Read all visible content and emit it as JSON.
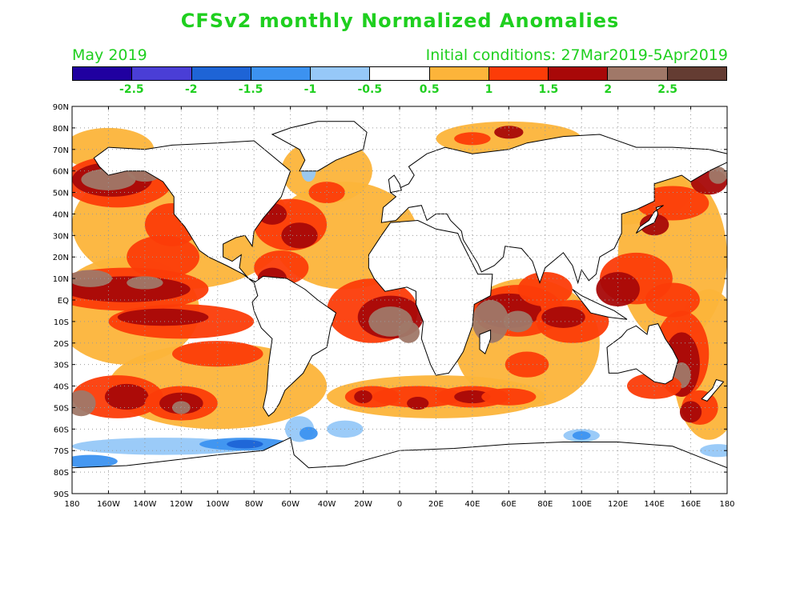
{
  "title": "CFSv2 monthly Normalized Anomalies",
  "valid_month": "May 2019",
  "initial_conditions": "Initial conditions: 27Mar2019-5Apr2019",
  "colorbar": {
    "colors": [
      "#2000a0",
      "#4a3ed6",
      "#1e64d6",
      "#3c92f0",
      "#96c8f8",
      "#ffffff",
      "#fcb43a",
      "#fc3c08",
      "#a80808",
      "#a07868",
      "#643c32"
    ],
    "labels": [
      "-2.5",
      "-2",
      "-1.5",
      "-1",
      "-0.5",
      "0.5",
      "1",
      "1.5",
      "2",
      "2.5"
    ]
  },
  "axes": {
    "lat_labels": [
      "90N",
      "80N",
      "70N",
      "60N",
      "50N",
      "40N",
      "30N",
      "20N",
      "10N",
      "EQ",
      "10S",
      "20S",
      "30S",
      "40S",
      "50S",
      "60S",
      "70S",
      "80S",
      "90S"
    ],
    "lon_labels": [
      "180",
      "160W",
      "140W",
      "120W",
      "100W",
      "80W",
      "60W",
      "40W",
      "20W",
      "0",
      "20E",
      "40E",
      "60E",
      "80E",
      "100E",
      "120E",
      "140E",
      "160E",
      "180"
    ]
  },
  "palette": {
    "land": "#ffffff",
    "coast": "#000000",
    "grid": "#999999"
  }
}
